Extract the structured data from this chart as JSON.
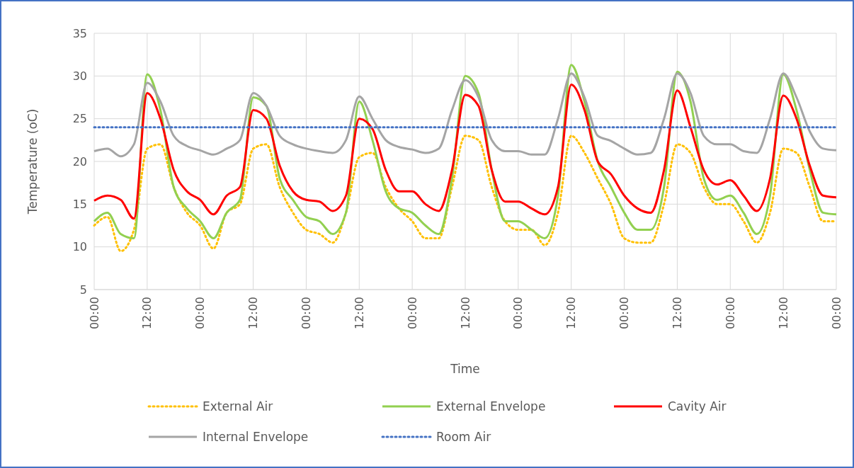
{
  "chart_data": {
    "type": "line",
    "xlabel": "Time",
    "ylabel": "Temperature (oC)",
    "categories": [
      "00:00",
      null,
      null,
      null,
      "12:00",
      null,
      null,
      null,
      "00:00",
      null,
      null,
      null,
      "12:00",
      null,
      null,
      null,
      "00:00",
      null,
      null,
      null,
      "12:00",
      null,
      null,
      null,
      "00:00",
      null,
      null,
      null,
      "12:00",
      null,
      null,
      null,
      "00:00",
      null,
      null,
      null,
      "12:00",
      null,
      null,
      null,
      "00:00",
      null,
      null,
      null,
      "12:00",
      null,
      null,
      null,
      "00:00",
      null,
      null,
      null,
      "12:00",
      null,
      null,
      null,
      "00:00"
    ],
    "ylim": [
      5,
      35
    ],
    "yticks": [
      5,
      10,
      15,
      20,
      25,
      30,
      35
    ],
    "grid": true,
    "legend": "bottom",
    "marker": "none",
    "series": [
      {
        "name": "External Air",
        "color": "#ffc000",
        "line_style": "dotted",
        "values": [
          12.5,
          13.5,
          9.5,
          12,
          21.5,
          22,
          17,
          14,
          12.5,
          9.8,
          14,
          15,
          21.5,
          22,
          17,
          14,
          12,
          11.5,
          10.5,
          14,
          20.5,
          21,
          17,
          14.5,
          13,
          11,
          11,
          17,
          23,
          22.5,
          17,
          13,
          12,
          12,
          10.2,
          14,
          23,
          21,
          18,
          15,
          11,
          10.5,
          10.5,
          15,
          22,
          21,
          17,
          15,
          15,
          13,
          10.5,
          14,
          21.5,
          21,
          17,
          13,
          13
        ]
      },
      {
        "name": "External Envelope",
        "color": "#92d050",
        "line_style": "solid",
        "values": [
          13,
          14,
          11.5,
          11,
          30.2,
          26,
          17,
          14.5,
          13,
          11,
          14,
          15.5,
          27.5,
          26.5,
          18,
          15.5,
          13.5,
          13,
          11.5,
          14,
          27,
          22.5,
          16.5,
          14.5,
          14,
          12.5,
          11.5,
          18,
          30,
          28,
          19,
          13,
          13,
          12,
          11,
          16,
          31.3,
          27,
          20,
          17,
          14,
          12,
          12,
          17,
          30.5,
          27,
          18,
          15.5,
          16,
          14,
          11.5,
          16,
          30.2,
          26,
          19,
          14,
          13.8
        ]
      },
      {
        "name": "Cavity Air",
        "color": "#ff0000",
        "line_style": "solid",
        "values": [
          15.4,
          16,
          15.5,
          13.3,
          28,
          25,
          19,
          16.5,
          15.5,
          13.8,
          16,
          17,
          26,
          25,
          19.5,
          16.5,
          15.5,
          15.3,
          14.2,
          16,
          25,
          23.8,
          19,
          16.5,
          16.5,
          15,
          14.2,
          19,
          27.8,
          26.5,
          19,
          15.3,
          15.3,
          14.5,
          13.8,
          17,
          29,
          26,
          20,
          18.5,
          16,
          14.5,
          14,
          19,
          28.3,
          24,
          19,
          17.3,
          17.8,
          16,
          14.2,
          18,
          27.7,
          25,
          19.5,
          16,
          15.8
        ]
      },
      {
        "name": "Internal Envelope",
        "color": "#a5a5a5",
        "line_style": "solid",
        "values": [
          21.2,
          21.5,
          20.6,
          22,
          29.2,
          27,
          23,
          21.8,
          21.3,
          20.8,
          21.5,
          22.5,
          28,
          26.5,
          23,
          22,
          21.5,
          21.2,
          21,
          22.5,
          27.6,
          25,
          22.5,
          21.7,
          21.4,
          21,
          21.5,
          26,
          29.5,
          27.5,
          22.5,
          21.2,
          21.2,
          20.8,
          20.8,
          25,
          30.3,
          27.5,
          23,
          22.4,
          21.5,
          20.8,
          21,
          25,
          30.3,
          28,
          23,
          22,
          22,
          21.2,
          21,
          25,
          30.3,
          27.5,
          23.5,
          21.5,
          21.3
        ]
      },
      {
        "name": "Room Air",
        "color": "#4472c4",
        "line_style": "dotted",
        "values": [
          24,
          24,
          24,
          24,
          24,
          24,
          24,
          24,
          24,
          24,
          24,
          24,
          24,
          24,
          24,
          24,
          24,
          24,
          24,
          24,
          24,
          24,
          24,
          24,
          24,
          24,
          24,
          24,
          24,
          24,
          24,
          24,
          24,
          24,
          24,
          24,
          24,
          24,
          24,
          24,
          24,
          24,
          24,
          24,
          24,
          24,
          24,
          24,
          24,
          24,
          24,
          24,
          24,
          24,
          24,
          24,
          24
        ]
      }
    ]
  }
}
